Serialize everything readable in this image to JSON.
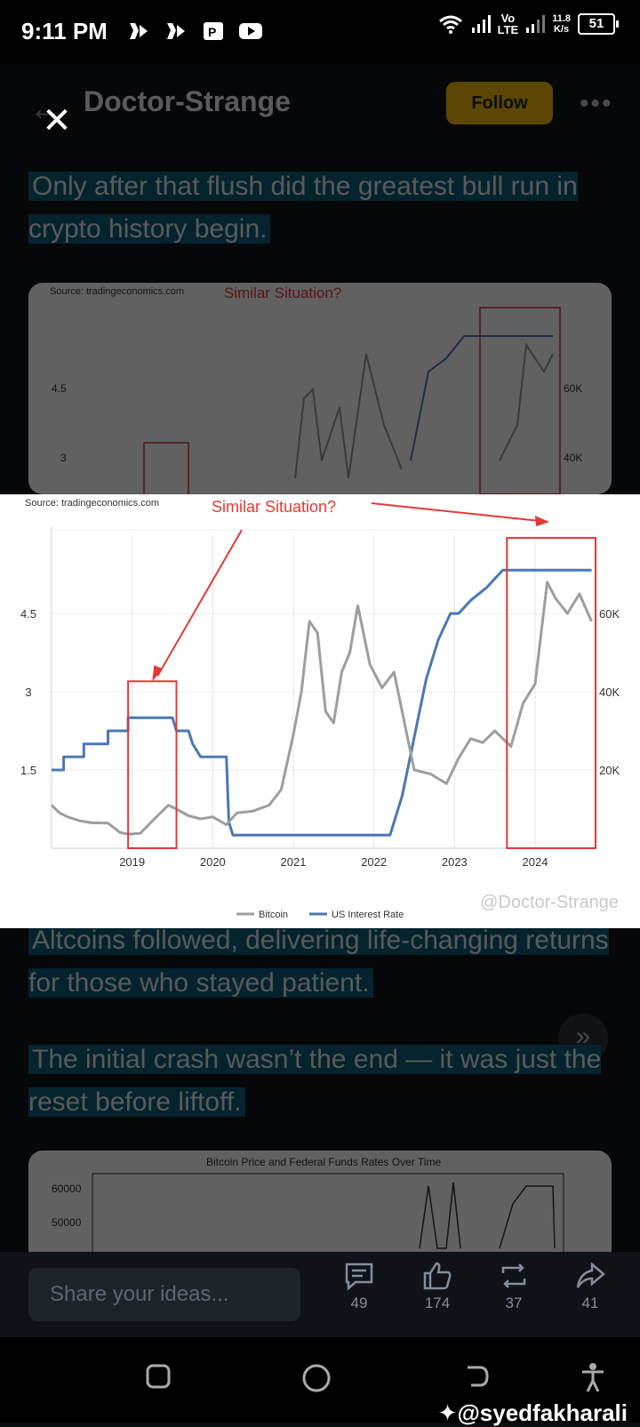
{
  "status_bar": {
    "time": "9:11 PM",
    "network": "Vo\nLTE",
    "network_top": "Vo",
    "network_bottom": "LTE",
    "speed_value": "11.8",
    "speed_unit": "K/s",
    "battery": "51"
  },
  "post": {
    "author": "Doctor-Strange",
    "follow_label": "Follow",
    "para1": "Only after that flush did the greatest bull run in crypto history begin.",
    "para2": "Altcoins followed, delivering life-changing returns for those who stayed patient.",
    "para3": "The initial crash wasn’t the end — it was just the reset before liftoff.",
    "bg_chart_source": "Source: tradingeconomics.com",
    "bg_chart_title": "Similar Situation?",
    "bg_chart_ticks": {
      "left": [
        "4.5",
        "3"
      ],
      "right": [
        "60K",
        "40K"
      ]
    },
    "card2_title": "Bitcoin Price and Federal Funds Rates Over Time",
    "card2_ticks": [
      "60000",
      "50000"
    ]
  },
  "bottom_bar": {
    "share_placeholder": "Share your ideas...",
    "comments": "49",
    "likes": "174",
    "reposts": "37",
    "shares": "41"
  },
  "watermark": "@syedfakharali",
  "chart_data": {
    "type": "line",
    "source": "Source: tradingeconomics.com",
    "annotation": "Similar Situation?",
    "watermark": "@Doctor-Strange",
    "x_ticks": [
      "2019",
      "2020",
      "2021",
      "2022",
      "2023",
      "2024"
    ],
    "y_left_ticks": [
      "1.5",
      "3",
      "4.5"
    ],
    "y_right_ticks": [
      "20K",
      "40K",
      "60K"
    ],
    "y_left_range": [
      0,
      6
    ],
    "y_right_range": [
      0,
      80000
    ],
    "x_range": [
      2018.0,
      2024.75
    ],
    "legend": [
      "Bitcoin",
      "US Interest Rate"
    ],
    "legend_position": "bottom",
    "series": [
      {
        "name": "US Interest Rate",
        "axis": "left",
        "color": "#4a78b5",
        "x": [
          2018.0,
          2018.15,
          2018.15,
          2018.4,
          2018.4,
          2018.7,
          2018.7,
          2018.95,
          2018.95,
          2019.5,
          2019.55,
          2019.7,
          2019.75,
          2019.85,
          2020.17,
          2020.2,
          2020.25,
          2022.2,
          2022.25,
          2022.35,
          2022.45,
          2022.55,
          2022.65,
          2022.8,
          2022.95,
          2023.05,
          2023.2,
          2023.4,
          2023.55,
          2023.6,
          2024.7
        ],
        "y": [
          1.5,
          1.5,
          1.75,
          1.75,
          2.0,
          2.0,
          2.25,
          2.25,
          2.5,
          2.5,
          2.25,
          2.25,
          2.0,
          1.75,
          1.75,
          0.5,
          0.25,
          0.25,
          0.5,
          1.0,
          1.75,
          2.5,
          3.25,
          4.0,
          4.5,
          4.5,
          4.75,
          5.0,
          5.25,
          5.33,
          5.33
        ]
      },
      {
        "name": "Bitcoin",
        "axis": "right",
        "color": "#9e9e9e",
        "x": [
          2018.0,
          2018.1,
          2018.2,
          2018.35,
          2018.5,
          2018.7,
          2018.85,
          2018.95,
          2019.1,
          2019.3,
          2019.45,
          2019.55,
          2019.7,
          2019.85,
          2020.0,
          2020.17,
          2020.3,
          2020.5,
          2020.7,
          2020.85,
          2021.0,
          2021.1,
          2021.2,
          2021.3,
          2021.4,
          2021.5,
          2021.6,
          2021.7,
          2021.8,
          2021.85,
          2021.95,
          2022.1,
          2022.25,
          2022.4,
          2022.5,
          2022.7,
          2022.9,
          2023.05,
          2023.2,
          2023.35,
          2023.5,
          2023.7,
          2023.85,
          2024.0,
          2024.15,
          2024.25,
          2024.4,
          2024.55,
          2024.7
        ],
        "y": [
          11000,
          9000,
          8000,
          7000,
          6500,
          6400,
          4000,
          3600,
          3800,
          8000,
          11000,
          10000,
          8300,
          7500,
          8000,
          6000,
          9000,
          9500,
          11000,
          15000,
          29000,
          40000,
          58000,
          55000,
          35000,
          32000,
          45000,
          50000,
          62000,
          57000,
          47000,
          41000,
          45000,
          30000,
          20000,
          19000,
          16500,
          23000,
          28000,
          27000,
          30000,
          26000,
          37000,
          42000,
          68000,
          64000,
          60000,
          65000,
          58000
        ]
      }
    ],
    "highlight_ranges": [
      [
        2018.95,
        2019.55
      ],
      [
        2023.65,
        2024.75
      ]
    ]
  }
}
